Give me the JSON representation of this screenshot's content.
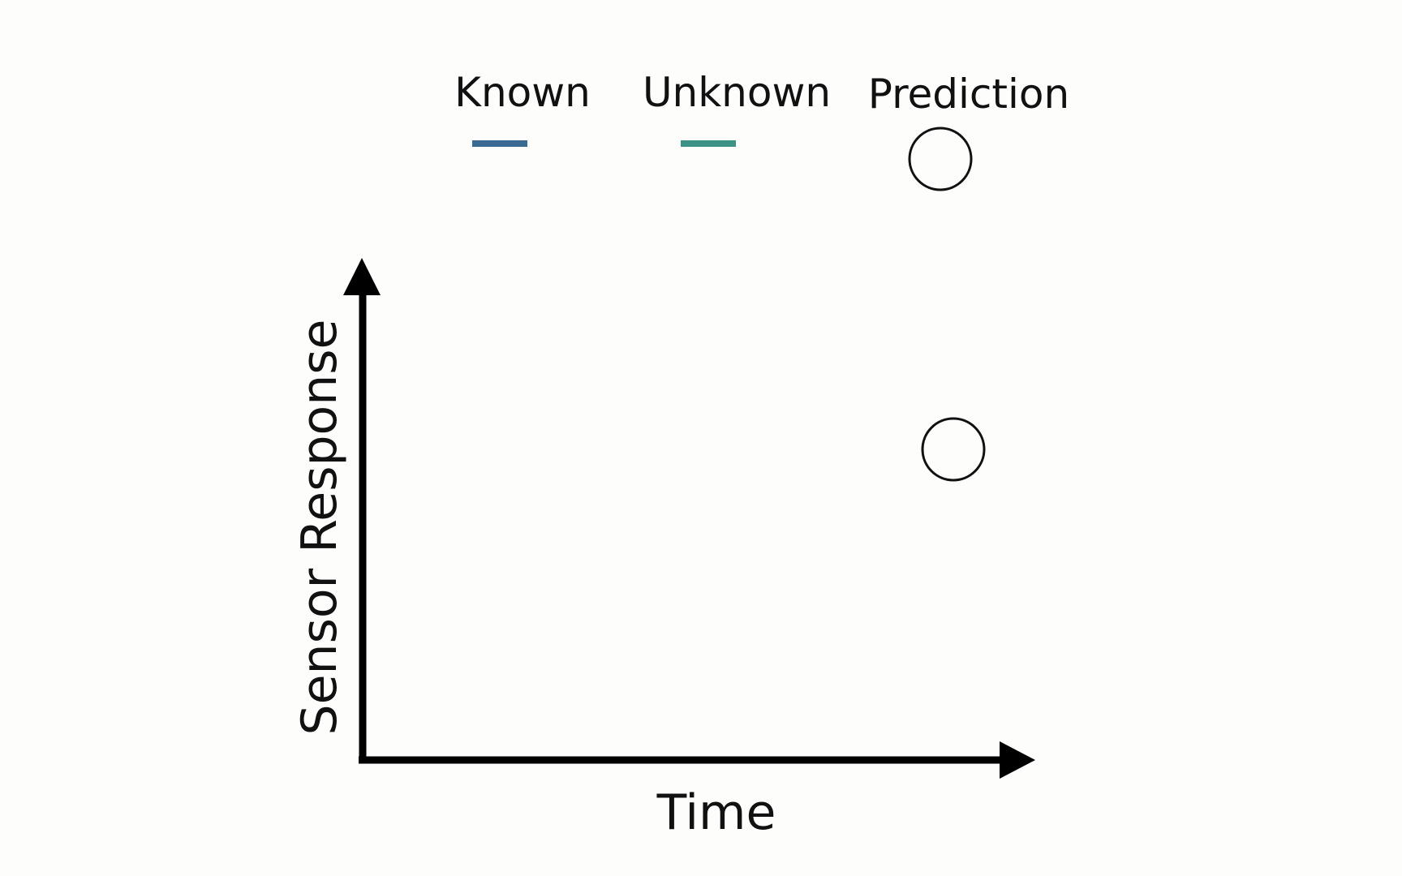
{
  "legend": {
    "known": {
      "label": "Known",
      "color": "#3a6a92"
    },
    "unknown": {
      "label": "Unknown",
      "color": "#3b9285"
    },
    "prediction": {
      "label": "Prediction",
      "marker": "open-circle"
    }
  },
  "axes": {
    "x_label": "Time",
    "y_label": "Sensor Response",
    "color": "#000000"
  },
  "plot": {
    "prediction_points": 1
  }
}
